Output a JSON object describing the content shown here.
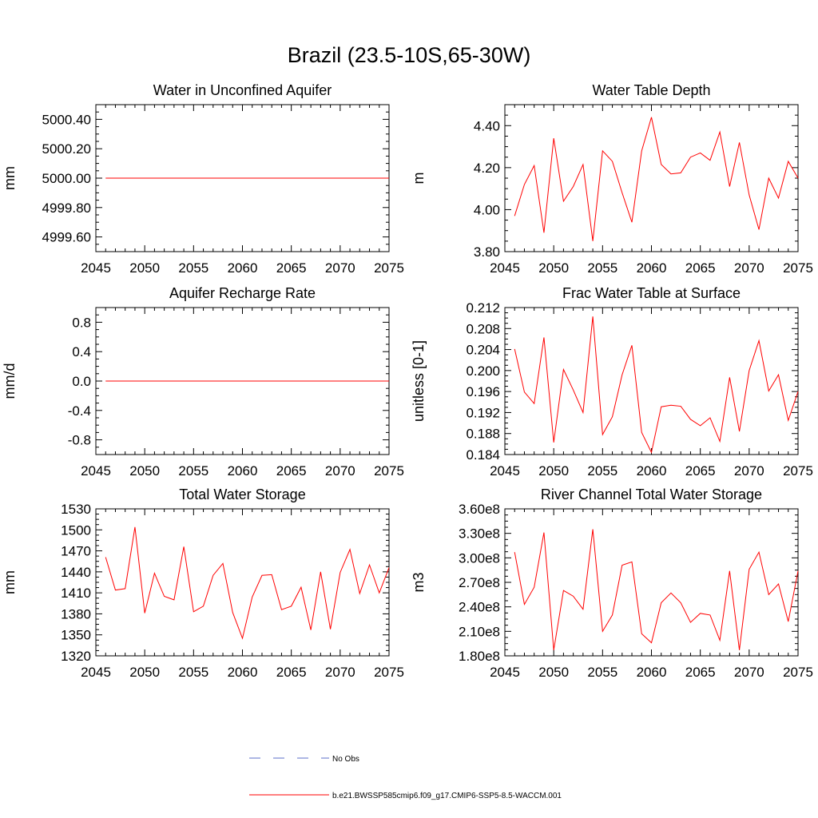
{
  "figure": {
    "title": "Brazil (23.5-10S,65-30W)",
    "legend": [
      {
        "label": "No Obs",
        "color": "#5b6fc8",
        "dash": true
      },
      {
        "label": "b.e21.BWSSP585cmip6.f09_g17.CMIP6-SSP5-8.5-WACCM.001",
        "color": "#ff0000",
        "dash": false
      }
    ]
  },
  "chart_data": [
    {
      "type": "line",
      "title": "Water in Unconfined Aquifer",
      "ylabel": "mm",
      "xlim": [
        2045,
        2075
      ],
      "ylim": [
        4999.5,
        5000.5
      ],
      "xticks": [
        2045,
        2050,
        2055,
        2060,
        2065,
        2070,
        2075
      ],
      "yticks": [
        4999.6,
        4999.8,
        5000.0,
        5000.2,
        5000.4
      ],
      "ytick_labels": [
        "4999.60",
        "4999.80",
        "5000.00",
        "5000.20",
        "5000.40"
      ],
      "series": [
        {
          "values": [
            5000,
            5000,
            5000,
            5000,
            5000,
            5000,
            5000,
            5000,
            5000,
            5000,
            5000,
            5000,
            5000,
            5000,
            5000,
            5000,
            5000,
            5000,
            5000,
            5000,
            5000,
            5000,
            5000,
            5000,
            5000,
            5000,
            5000,
            5000,
            5000,
            5000
          ],
          "color": "#ff0000"
        }
      ],
      "x": [
        2046,
        2047,
        2048,
        2049,
        2050,
        2051,
        2052,
        2053,
        2054,
        2055,
        2056,
        2057,
        2058,
        2059,
        2060,
        2061,
        2062,
        2063,
        2064,
        2065,
        2066,
        2067,
        2068,
        2069,
        2070,
        2071,
        2072,
        2073,
        2074,
        2075
      ]
    },
    {
      "type": "line",
      "title": "Water Table Depth",
      "ylabel": "m",
      "xlim": [
        2045,
        2075
      ],
      "ylim": [
        3.8,
        4.5
      ],
      "xticks": [
        2045,
        2050,
        2055,
        2060,
        2065,
        2070,
        2075
      ],
      "yticks": [
        3.8,
        4.0,
        4.2,
        4.4
      ],
      "ytick_labels": [
        "3.80",
        "4.00",
        "4.20",
        "4.40"
      ],
      "series": [
        {
          "values": [
            3.97,
            4.12,
            4.21,
            3.89,
            4.34,
            4.04,
            4.11,
            4.215,
            3.85,
            4.28,
            4.23,
            4.08,
            3.94,
            4.28,
            4.44,
            4.215,
            4.17,
            4.175,
            4.25,
            4.27,
            4.235,
            4.37,
            4.11,
            4.32,
            4.07,
            3.905,
            4.15,
            4.055,
            4.23,
            4.15
          ],
          "color": "#ff0000"
        }
      ],
      "x": [
        2046,
        2047,
        2048,
        2049,
        2050,
        2051,
        2052,
        2053,
        2054,
        2055,
        2056,
        2057,
        2058,
        2059,
        2060,
        2061,
        2062,
        2063,
        2064,
        2065,
        2066,
        2067,
        2068,
        2069,
        2070,
        2071,
        2072,
        2073,
        2074,
        2075
      ]
    },
    {
      "type": "line",
      "title": "Aquifer Recharge Rate",
      "ylabel": "mm/d",
      "xlim": [
        2045,
        2075
      ],
      "ylim": [
        -1.0,
        1.0
      ],
      "xticks": [
        2045,
        2050,
        2055,
        2060,
        2065,
        2070,
        2075
      ],
      "yticks": [
        -0.8,
        -0.4,
        0.0,
        0.4,
        0.8
      ],
      "ytick_labels": [
        "-0.8",
        "-0.4",
        "0.0",
        "0.4",
        "0.8"
      ],
      "series": [
        {
          "values": [
            0,
            0,
            0,
            0,
            0,
            0,
            0,
            0,
            0,
            0,
            0,
            0,
            0,
            0,
            0,
            0,
            0,
            0,
            0,
            0,
            0,
            0,
            0,
            0,
            0,
            0,
            0,
            0,
            0,
            0
          ],
          "color": "#ff0000"
        }
      ],
      "x": [
        2046,
        2047,
        2048,
        2049,
        2050,
        2051,
        2052,
        2053,
        2054,
        2055,
        2056,
        2057,
        2058,
        2059,
        2060,
        2061,
        2062,
        2063,
        2064,
        2065,
        2066,
        2067,
        2068,
        2069,
        2070,
        2071,
        2072,
        2073,
        2074,
        2075
      ]
    },
    {
      "type": "line",
      "title": "Frac Water Table at Surface",
      "ylabel": "unitless [0-1]",
      "xlim": [
        2045,
        2075
      ],
      "ylim": [
        0.184,
        0.212
      ],
      "xticks": [
        2045,
        2050,
        2055,
        2060,
        2065,
        2070,
        2075
      ],
      "yticks": [
        0.184,
        0.188,
        0.192,
        0.196,
        0.2,
        0.204,
        0.208,
        0.212
      ],
      "ytick_labels": [
        "0.184",
        "0.188",
        "0.192",
        "0.196",
        "0.200",
        "0.204",
        "0.208",
        "0.212"
      ],
      "series": [
        {
          "values": [
            0.2041,
            0.1959,
            0.1937,
            0.2063,
            0.1863,
            0.2002,
            0.1963,
            0.192,
            0.2103,
            0.1878,
            0.1912,
            0.1992,
            0.2048,
            0.1882,
            0.1844,
            0.1931,
            0.1934,
            0.1932,
            0.1907,
            0.1895,
            0.191,
            0.1865,
            0.1987,
            0.1884,
            0.2,
            0.2057,
            0.1961,
            0.1992,
            0.1905,
            0.196
          ],
          "color": "#ff0000"
        }
      ],
      "x": [
        2046,
        2047,
        2048,
        2049,
        2050,
        2051,
        2052,
        2053,
        2054,
        2055,
        2056,
        2057,
        2058,
        2059,
        2060,
        2061,
        2062,
        2063,
        2064,
        2065,
        2066,
        2067,
        2068,
        2069,
        2070,
        2071,
        2072,
        2073,
        2074,
        2075
      ]
    },
    {
      "type": "line",
      "title": "Total Water Storage",
      "ylabel": "mm",
      "xlim": [
        2045,
        2075
      ],
      "ylim": [
        1320,
        1530
      ],
      "xticks": [
        2045,
        2050,
        2055,
        2060,
        2065,
        2070,
        2075
      ],
      "yticks": [
        1320,
        1350,
        1380,
        1410,
        1440,
        1470,
        1500,
        1530
      ],
      "ytick_labels": [
        "1320",
        "1350",
        "1380",
        "1410",
        "1440",
        "1470",
        "1500",
        "1530"
      ],
      "series": [
        {
          "values": [
            1461,
            1414,
            1416,
            1504,
            1381,
            1438,
            1405,
            1400,
            1476,
            1383,
            1391,
            1435,
            1452,
            1382,
            1345,
            1404,
            1435,
            1436,
            1386,
            1391,
            1418,
            1357,
            1440,
            1358,
            1439,
            1472,
            1409,
            1450,
            1410,
            1446
          ],
          "color": "#ff0000"
        }
      ],
      "x": [
        2046,
        2047,
        2048,
        2049,
        2050,
        2051,
        2052,
        2053,
        2054,
        2055,
        2056,
        2057,
        2058,
        2059,
        2060,
        2061,
        2062,
        2063,
        2064,
        2065,
        2066,
        2067,
        2068,
        2069,
        2070,
        2071,
        2072,
        2073,
        2074,
        2075
      ]
    },
    {
      "type": "line",
      "title": "River Channel Total Water Storage",
      "ylabel": "m3",
      "xlim": [
        2045,
        2075
      ],
      "ylim": [
        180000000.0,
        360000000.0
      ],
      "xticks": [
        2045,
        2050,
        2055,
        2060,
        2065,
        2070,
        2075
      ],
      "yticks": [
        180000000.0,
        210000000.0,
        240000000.0,
        270000000.0,
        300000000.0,
        330000000.0,
        360000000.0
      ],
      "ytick_labels": [
        "1.80e8",
        "2.10e8",
        "2.40e8",
        "2.70e8",
        "3.00e8",
        "3.30e8",
        "3.60e8"
      ],
      "series": [
        {
          "values": [
            307000000.0,
            243000000.0,
            264000000.0,
            331000000.0,
            187000000.0,
            260000000.0,
            253000000.0,
            237000000.0,
            335000000.0,
            210000000.0,
            230000000.0,
            291000000.0,
            295000000.0,
            207000000.0,
            196000000.0,
            245000000.0,
            257000000.0,
            245000000.0,
            221000000.0,
            232000000.0,
            230000000.0,
            199000000.0,
            284000000.0,
            187000000.0,
            286000000.0,
            307000000.0,
            255000000.0,
            268000000.0,
            222000000.0,
            284000000.0
          ],
          "color": "#ff0000"
        }
      ],
      "x": [
        2046,
        2047,
        2048,
        2049,
        2050,
        2051,
        2052,
        2053,
        2054,
        2055,
        2056,
        2057,
        2058,
        2059,
        2060,
        2061,
        2062,
        2063,
        2064,
        2065,
        2066,
        2067,
        2068,
        2069,
        2070,
        2071,
        2072,
        2073,
        2074,
        2075
      ]
    }
  ]
}
